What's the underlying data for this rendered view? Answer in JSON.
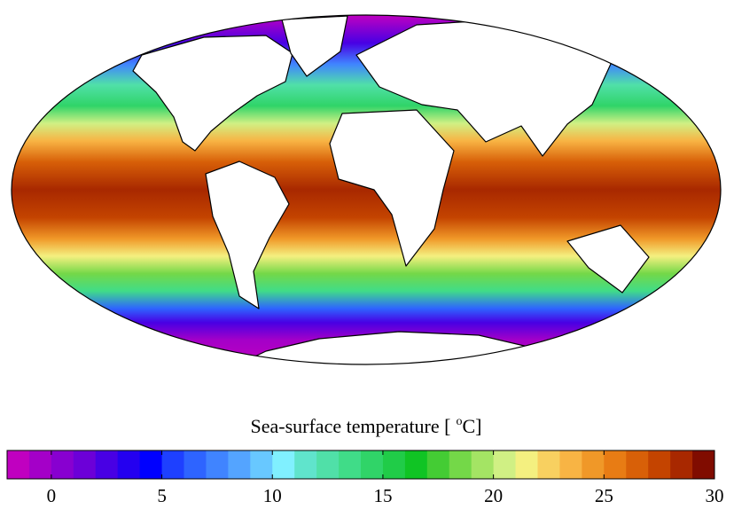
{
  "colorbar": {
    "label": {
      "text": "Sea-surface temperature [",
      "superscript": "o",
      "unit": "C]"
    },
    "range": [
      -2,
      30
    ],
    "ticks": [
      0,
      5,
      10,
      15,
      20,
      25,
      30
    ],
    "colors": [
      "#c000c0",
      "#a400c8",
      "#8800d0",
      "#6c00d8",
      "#4800e4",
      "#2400f0",
      "#0000ff",
      "#1e40ff",
      "#2e64ff",
      "#4084ff",
      "#54a4ff",
      "#68c8ff",
      "#80f0ff",
      "#60e4cc",
      "#50e0a8",
      "#40dc88",
      "#30d468",
      "#20cc48",
      "#10c424",
      "#44cc34",
      "#74d848",
      "#a4e464",
      "#d0f084",
      "#f4f080",
      "#f8d060",
      "#f8b444",
      "#f09828",
      "#e87c14",
      "#d86008",
      "#c44400",
      "#a82800",
      "#800c00"
    ]
  }
}
